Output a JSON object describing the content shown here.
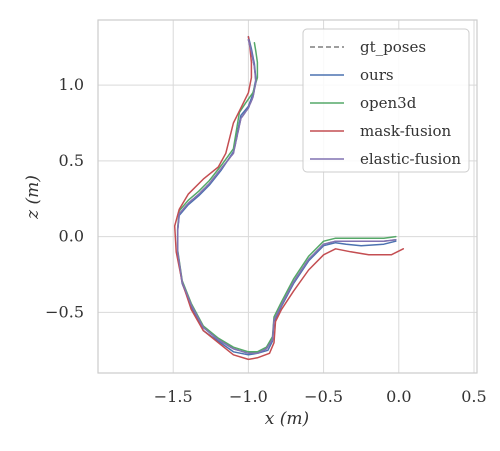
{
  "chart_data": {
    "type": "line",
    "title": "",
    "xlabel": "x (m)",
    "ylabel": "z (m)",
    "xlim": [
      -2.0,
      0.52
    ],
    "ylim": [
      -0.9,
      1.43
    ],
    "xticks": [
      -1.5,
      -1.0,
      -0.5,
      0.0,
      0.5
    ],
    "xtick_labels": [
      "−1.5",
      "−1.0",
      "−0.5",
      "0.0",
      "0.5"
    ],
    "yticks": [
      -0.5,
      0.0,
      0.5,
      1.0
    ],
    "ytick_labels": [
      "−0.5",
      "0.0",
      "0.5",
      "1.0"
    ],
    "grid": true,
    "legend_position": "top-right",
    "series": [
      {
        "name": "gt_poses",
        "color": "#7f7f7f",
        "dashed": true,
        "x": [
          -0.02,
          -0.1,
          -0.25,
          -0.35,
          -0.42,
          -0.5,
          -0.6,
          -0.7,
          -0.78,
          -0.83,
          -0.84,
          -0.88,
          -0.94,
          -1.0,
          -1.1,
          -1.2,
          -1.3,
          -1.38,
          -1.44,
          -1.47,
          -1.47,
          -1.46,
          -1.4,
          -1.33,
          -1.26,
          -1.18,
          -1.1,
          -1.05,
          -1.0,
          -0.97,
          -0.95,
          -0.96,
          -0.98,
          -1.0
        ],
        "y": [
          -0.02,
          -0.03,
          -0.03,
          -0.03,
          -0.03,
          -0.05,
          -0.15,
          -0.3,
          -0.45,
          -0.55,
          -0.68,
          -0.74,
          -0.77,
          -0.77,
          -0.74,
          -0.68,
          -0.6,
          -0.45,
          -0.3,
          -0.1,
          0.05,
          0.15,
          0.22,
          0.28,
          0.35,
          0.45,
          0.55,
          0.78,
          0.85,
          0.92,
          1.02,
          1.12,
          1.22,
          1.3
        ]
      },
      {
        "name": "ours",
        "color": "#4c72b0",
        "dashed": false,
        "x": [
          -0.02,
          -0.1,
          -0.25,
          -0.35,
          -0.42,
          -0.5,
          -0.6,
          -0.7,
          -0.78,
          -0.83,
          -0.84,
          -0.87,
          -0.94,
          -1.0,
          -1.1,
          -1.2,
          -1.3,
          -1.38,
          -1.44,
          -1.47,
          -1.47,
          -1.46,
          -1.4,
          -1.33,
          -1.26,
          -1.18,
          -1.1,
          -1.05,
          -1.0,
          -0.97,
          -0.95,
          -0.96,
          -0.98,
          -1.0
        ],
        "y": [
          -0.03,
          -0.05,
          -0.06,
          -0.05,
          -0.04,
          -0.06,
          -0.16,
          -0.31,
          -0.46,
          -0.56,
          -0.69,
          -0.75,
          -0.77,
          -0.78,
          -0.76,
          -0.69,
          -0.62,
          -0.46,
          -0.31,
          -0.12,
          0.04,
          0.14,
          0.21,
          0.27,
          0.34,
          0.44,
          0.56,
          0.8,
          0.86,
          0.94,
          1.04,
          1.14,
          1.24,
          1.32
        ]
      },
      {
        "name": "open3d",
        "color": "#55a868",
        "dashed": false,
        "x": [
          -0.02,
          -0.1,
          -0.25,
          -0.35,
          -0.42,
          -0.5,
          -0.6,
          -0.7,
          -0.78,
          -0.83,
          -0.84,
          -0.88,
          -0.94,
          -1.0,
          -1.1,
          -1.2,
          -1.3,
          -1.38,
          -1.44,
          -1.47,
          -1.47,
          -1.46,
          -1.4,
          -1.33,
          -1.26,
          -1.18,
          -1.1,
          -1.06,
          -1.02,
          -0.97,
          -0.94,
          -0.94,
          -0.95,
          -0.96
        ],
        "y": [
          0.0,
          -0.01,
          -0.01,
          -0.01,
          -0.01,
          -0.03,
          -0.13,
          -0.28,
          -0.43,
          -0.53,
          -0.66,
          -0.73,
          -0.76,
          -0.76,
          -0.73,
          -0.67,
          -0.59,
          -0.44,
          -0.29,
          -0.09,
          0.06,
          0.17,
          0.24,
          0.3,
          0.37,
          0.47,
          0.58,
          0.82,
          0.88,
          0.95,
          1.05,
          1.15,
          1.22,
          1.28
        ]
      },
      {
        "name": "mask-fusion",
        "color": "#c44e52",
        "dashed": false,
        "x": [
          0.03,
          -0.05,
          -0.2,
          -0.32,
          -0.42,
          -0.5,
          -0.6,
          -0.7,
          -0.78,
          -0.82,
          -0.83,
          -0.86,
          -0.94,
          -1.0,
          -1.1,
          -1.2,
          -1.3,
          -1.38,
          -1.44,
          -1.48,
          -1.49,
          -1.46,
          -1.4,
          -1.3,
          -1.2,
          -1.15,
          -1.1,
          -1.05,
          -1.0,
          -0.98,
          -0.98,
          -0.99,
          -1.0
        ],
        "y": [
          -0.08,
          -0.12,
          -0.12,
          -0.1,
          -0.08,
          -0.12,
          -0.22,
          -0.36,
          -0.48,
          -0.56,
          -0.7,
          -0.77,
          -0.8,
          -0.81,
          -0.78,
          -0.7,
          -0.62,
          -0.48,
          -0.3,
          -0.1,
          0.07,
          0.18,
          0.28,
          0.38,
          0.46,
          0.55,
          0.75,
          0.85,
          0.95,
          1.05,
          1.15,
          1.25,
          1.32
        ]
      },
      {
        "name": "elastic-fusion",
        "color": "#8172b2",
        "dashed": false,
        "x": [
          -0.02,
          -0.1,
          -0.25,
          -0.35,
          -0.42,
          -0.5,
          -0.6,
          -0.7,
          -0.78,
          -0.83,
          -0.84,
          -0.88,
          -0.94,
          -1.0,
          -1.1,
          -1.2,
          -1.3,
          -1.38,
          -1.44,
          -1.47,
          -1.47,
          -1.46,
          -1.4,
          -1.33,
          -1.26,
          -1.18,
          -1.1,
          -1.05,
          -1.0,
          -0.97,
          -0.95,
          -0.96,
          -0.98,
          -1.0
        ],
        "y": [
          -0.02,
          -0.03,
          -0.03,
          -0.03,
          -0.03,
          -0.05,
          -0.15,
          -0.3,
          -0.45,
          -0.55,
          -0.68,
          -0.74,
          -0.77,
          -0.77,
          -0.74,
          -0.68,
          -0.6,
          -0.45,
          -0.3,
          -0.1,
          0.05,
          0.15,
          0.22,
          0.28,
          0.35,
          0.45,
          0.55,
          0.78,
          0.85,
          0.92,
          1.02,
          1.12,
          1.22,
          1.3
        ]
      }
    ]
  }
}
